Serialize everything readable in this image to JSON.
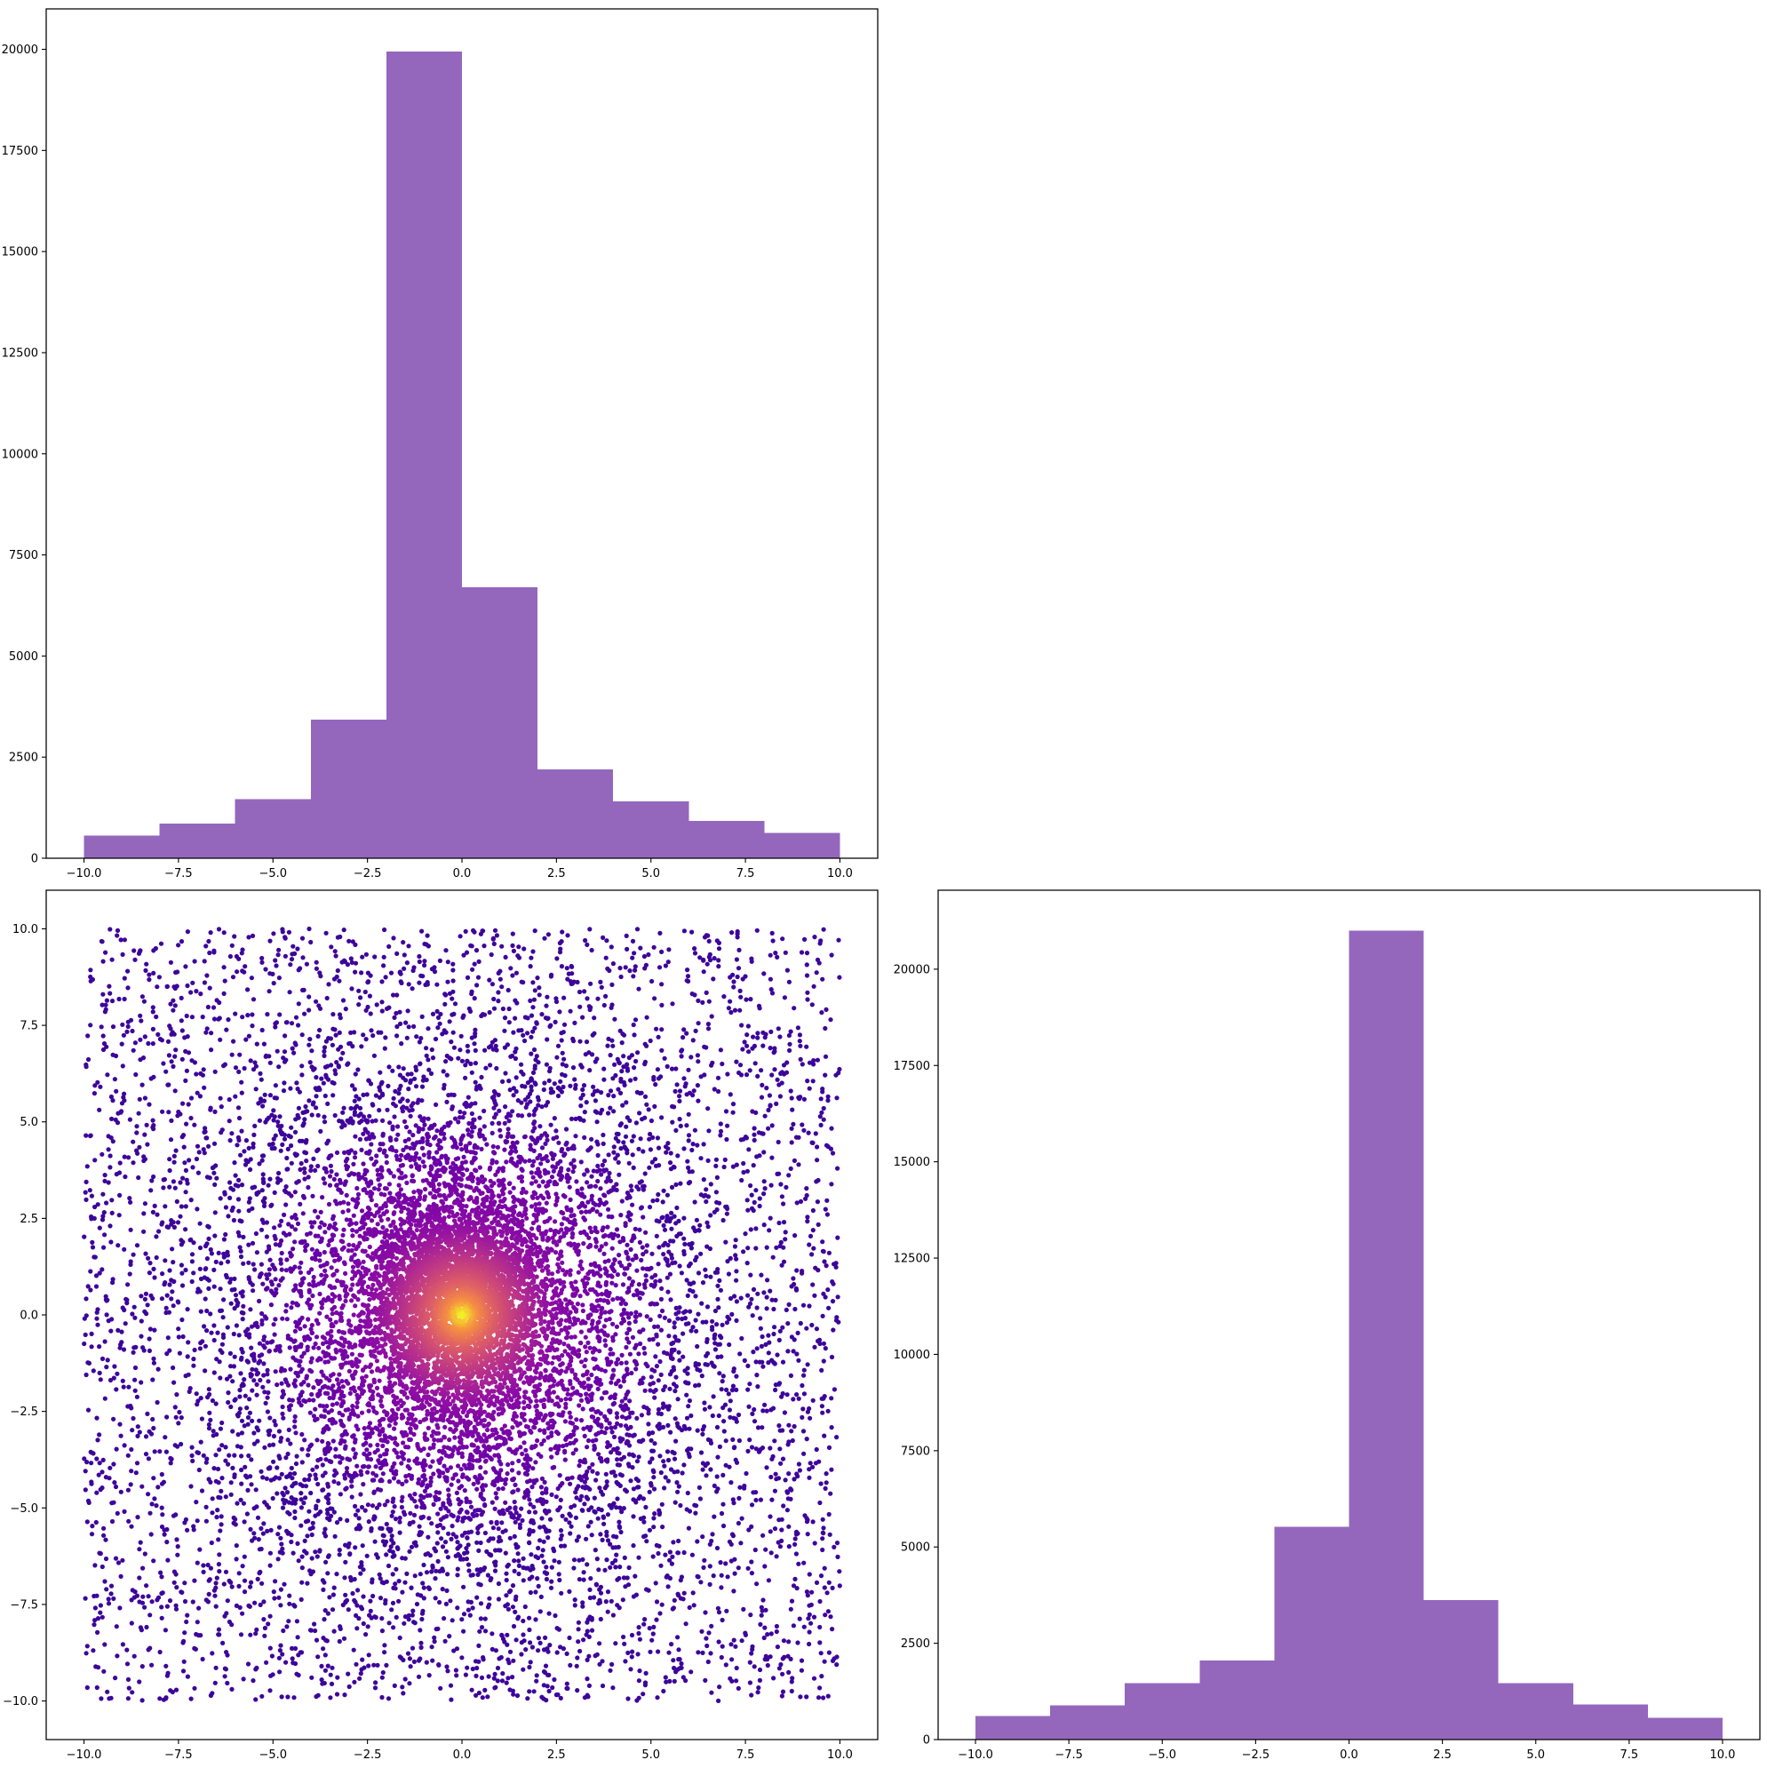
{
  "colors": {
    "bar_fill": "#9467bd",
    "scatter_low": "#2a0593",
    "scatter_mid": "#8f0da4",
    "scatter_high": "#f0f921"
  },
  "chart_data": [
    {
      "panel": "top-left",
      "type": "bar",
      "histogram_bin_edges": [
        -10,
        -8,
        -6,
        -4,
        -2,
        0,
        2,
        4,
        6,
        8,
        10
      ],
      "values": [
        560,
        860,
        1460,
        3430,
        19950,
        6700,
        2200,
        1410,
        920,
        630
      ],
      "title": "",
      "xlabel": "",
      "ylabel": "",
      "xlim": [
        -11,
        11
      ],
      "ylim": [
        0,
        21000
      ],
      "xticks": [
        -10.0,
        -7.5,
        -5.0,
        -2.5,
        0.0,
        2.5,
        5.0,
        7.5,
        10.0
      ],
      "xtick_labels": [
        "−10.0",
        "−7.5",
        "−5.0",
        "−2.5",
        "0.0",
        "2.5",
        "5.0",
        "7.5",
        "10.0"
      ],
      "yticks": [
        0,
        2500,
        5000,
        7500,
        10000,
        12500,
        15000,
        17500,
        20000
      ],
      "ytick_labels": [
        "0",
        "2500",
        "5000",
        "7500",
        "10000",
        "12500",
        "15000",
        "17500",
        "20000"
      ],
      "grid": false
    },
    {
      "panel": "bottom-left",
      "type": "scatter",
      "description_points": "random points uniformly spread over [-10,10]x[-10,10] plus a dense cluster near the origin; colour encodes density (plasma colormap)",
      "point_count_approx": 13000,
      "xlim": [
        -11,
        11
      ],
      "ylim": [
        -11,
        11
      ],
      "xticks": [
        -10.0,
        -7.5,
        -5.0,
        -2.5,
        0.0,
        2.5,
        5.0,
        7.5,
        10.0
      ],
      "xtick_labels": [
        "−10.0",
        "−7.5",
        "−5.0",
        "−2.5",
        "0.0",
        "2.5",
        "5.0",
        "7.5",
        "10.0"
      ],
      "yticks": [
        -10.0,
        -7.5,
        -5.0,
        -2.5,
        0.0,
        2.5,
        5.0,
        7.5,
        10.0
      ],
      "ytick_labels": [
        "−10.0",
        "−7.5",
        "−5.0",
        "−2.5",
        "0.0",
        "2.5",
        "5.0",
        "7.5",
        "10.0"
      ],
      "colormap": "plasma",
      "grid": false
    },
    {
      "panel": "bottom-right",
      "type": "bar",
      "histogram_bin_edges": [
        -10,
        -8,
        -6,
        -4,
        -2,
        0,
        2,
        4,
        6,
        8,
        10
      ],
      "values": [
        610,
        890,
        1460,
        2050,
        5520,
        21000,
        3620,
        1470,
        910,
        560
      ],
      "title": "",
      "xlabel": "",
      "ylabel": "",
      "xlim": [
        -11,
        11
      ],
      "ylim": [
        0,
        22050
      ],
      "xticks": [
        -10.0,
        -7.5,
        -5.0,
        -2.5,
        0.0,
        2.5,
        5.0,
        7.5,
        10.0
      ],
      "xtick_labels": [
        "−10.0",
        "−7.5",
        "−5.0",
        "−2.5",
        "0.0",
        "2.5",
        "5.0",
        "7.5",
        "10.0"
      ],
      "yticks": [
        0,
        2500,
        5000,
        7500,
        10000,
        12500,
        15000,
        17500,
        20000
      ],
      "ytick_labels": [
        "0",
        "2500",
        "5000",
        "7500",
        "10000",
        "12500",
        "15000",
        "17500",
        "20000"
      ],
      "grid": false
    }
  ]
}
